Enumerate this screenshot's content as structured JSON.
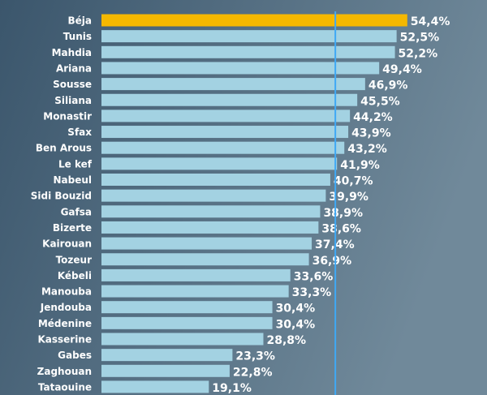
{
  "chart_data": {
    "type": "bar",
    "orientation": "horizontal",
    "categories": [
      "Béja",
      "Tunis",
      "Mahdia",
      "Ariana",
      "Sousse",
      "Siliana",
      "Monastir",
      "Sfax",
      "Ben Arous",
      "Le kef",
      "Nabeul",
      "Sidi Bouzid",
      "Gafsa",
      "Bizerte",
      "Kairouan",
      "Tozeur",
      "Kébeli",
      "Manouba",
      "Jendouba",
      "Médenine",
      "Kasserine",
      "Gabes",
      "Zaghouan",
      "Tataouine"
    ],
    "values": [
      54.4,
      52.5,
      52.2,
      49.4,
      46.9,
      45.5,
      44.2,
      43.9,
      43.2,
      41.9,
      40.7,
      39.9,
      38.9,
      38.6,
      37.4,
      36.9,
      33.6,
      33.3,
      30.4,
      30.4,
      28.8,
      23.3,
      22.8,
      19.1
    ],
    "value_labels": [
      "54,4%",
      "52,5%",
      "52,2%",
      "49,4%",
      "46,9%",
      "45,5%",
      "44,2%",
      "43,9%",
      "43,2%",
      "41,9%",
      "40,7%",
      "39,9%",
      "38,9%",
      "38,6%",
      "37,4%",
      "36,9%",
      "33,6%",
      "33,3%",
      "30,4%",
      "30,4%",
      "28,8%",
      "23,3%",
      "22,8%",
      "19,1%"
    ],
    "colors": [
      "#f5b800",
      "#a3d2e2",
      "#a3d2e2",
      "#a3d2e2",
      "#a3d2e2",
      "#a3d2e2",
      "#a3d2e2",
      "#a3d2e2",
      "#a3d2e2",
      "#a3d2e2",
      "#a3d2e2",
      "#a3d2e2",
      "#a3d2e2",
      "#a3d2e2",
      "#a3d2e2",
      "#a3d2e2",
      "#a3d2e2",
      "#a3d2e2",
      "#a3d2e2",
      "#a3d2e2",
      "#a3d2e2",
      "#a3d2e2",
      "#a3d2e2",
      "#a3d2e2"
    ],
    "xlim": [
      0,
      68
    ],
    "reference_line": {
      "value": 41.6,
      "color": "#3fa9f5"
    }
  }
}
